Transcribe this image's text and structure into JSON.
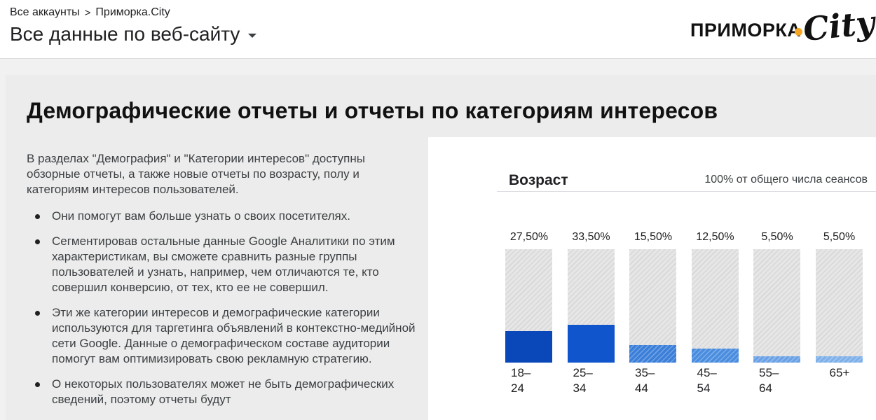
{
  "header": {
    "breadcrumb": {
      "root": "Все аккаунты",
      "separator": ">",
      "account": "Приморка.City"
    },
    "property": "Все данные по веб-сайту",
    "logo": {
      "word": "ПРИМОРКА",
      "script": "City",
      "dot_color": "#f5a623"
    }
  },
  "main": {
    "title": "Демографические отчеты и отчеты по категориям интересов",
    "intro": "В разделах \"Демография\" и \"Категории интересов\" доступны обзорные отчеты, а также новые отчеты по возрасту, полу и категориям интересов пользователей.",
    "bullets": [
      "Они помогут вам больше узнать о своих посетителях.",
      "Сегментировав остальные данные Google Аналитики по этим характеристикам, вы сможете сравнить разные группы пользователей и узнать, например, чем отличаются те, кто совершил конверсию, от тех, кто ее не совершил.",
      "Эти же категории интересов и демографические категории используются для таргетинга объявлений в контекстно-медийной сети Google. Данные о демографическом составе аудитории помогут вам оптимизировать свою рекламную стратегию.",
      "О некоторых пользователях может не быть демографических сведений, поэтому отчеты будут"
    ]
  },
  "panel": {
    "title": "Возраст",
    "subtitle": "100% от общего числа сеансов"
  },
  "chart_data": {
    "type": "bar",
    "title": "Возраст",
    "categories": [
      "18–24",
      "25–34",
      "35–44",
      "45–54",
      "55–64",
      "65+"
    ],
    "values": [
      27.5,
      33.5,
      15.5,
      12.5,
      5.5,
      5.5
    ],
    "value_labels": [
      "27,50%",
      "33,50%",
      "15,50%",
      "12,50%",
      "5,50%",
      "5,50%"
    ],
    "category_labels": [
      [
        "18–",
        "24"
      ],
      [
        "25–",
        "34"
      ],
      [
        "35–",
        "44"
      ],
      [
        "45–",
        "54"
      ],
      [
        "55–",
        "64"
      ],
      [
        "65+"
      ]
    ],
    "ylim": [
      0,
      100
    ],
    "colors": [
      "#0a47b9",
      "#1155cc",
      "#3b7fd9",
      "#4a8ddf",
      "#6aa1e6",
      "#7eb0ea"
    ]
  }
}
